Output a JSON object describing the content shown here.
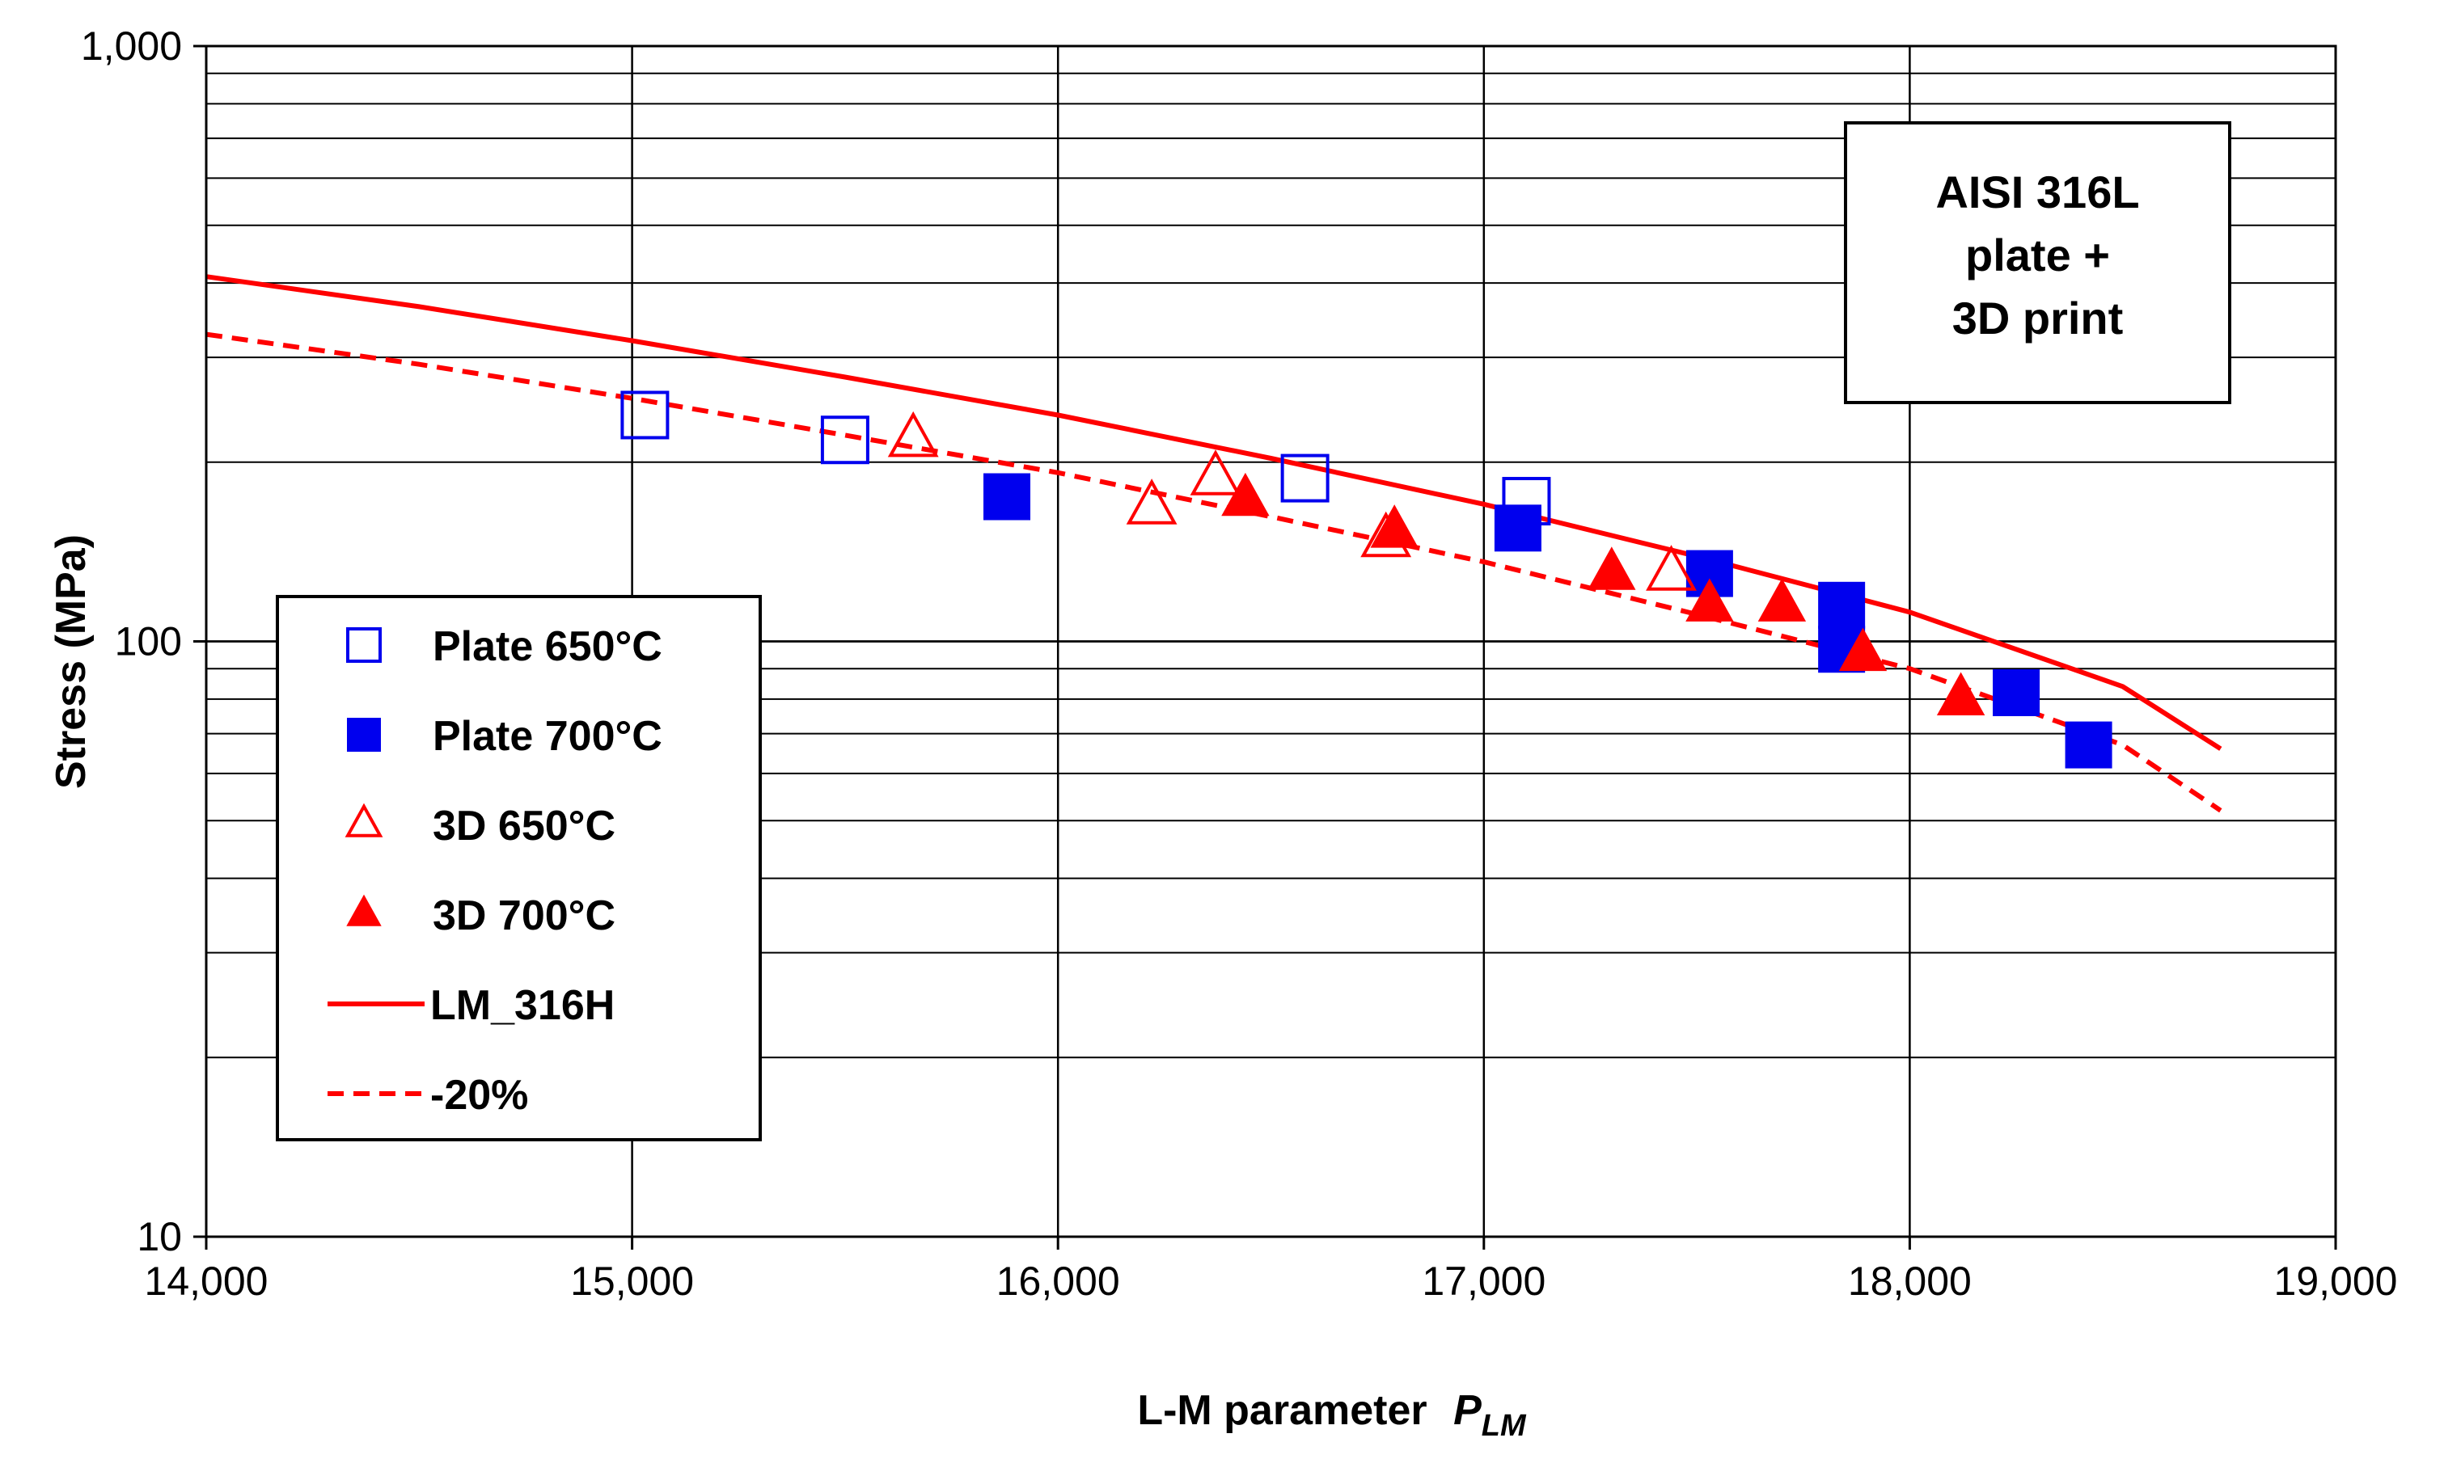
{
  "chart_data": {
    "type": "scatter",
    "title": "",
    "xlabel": "L-M parameter",
    "xlabel_symbol": "P",
    "xlabel_subscript": "LM",
    "ylabel": "Stress (MPa)",
    "xlim": [
      14000,
      19000
    ],
    "ylim": [
      10,
      1000
    ],
    "yscale": "log",
    "grid": true,
    "x_ticks": [
      14000,
      15000,
      16000,
      17000,
      18000,
      19000
    ],
    "x_tick_labels": [
      "14,000",
      "15,000",
      "16,000",
      "17,000",
      "18,000",
      "19,000"
    ],
    "y_ticks": [
      10,
      100,
      1000
    ],
    "y_tick_labels": [
      "10",
      "100",
      "1,000"
    ],
    "legend_position": "center-left",
    "annotation": {
      "lines": [
        "AISI 316L",
        "plate +",
        "3D print"
      ],
      "position": "top-right"
    },
    "series": [
      {
        "name": "Plate 650°C",
        "marker": "square-open",
        "color": "#0000ee",
        "x": [
          15030,
          15500,
          16580,
          17100
        ],
        "y": [
          240,
          218,
          188,
          172
        ]
      },
      {
        "name": "Plate 700°C",
        "marker": "square-filled",
        "color": "#0000ee",
        "x": [
          15880,
          17080,
          17530,
          17840,
          17840,
          18250,
          18420
        ],
        "y": [
          175,
          155,
          130,
          115,
          97,
          82,
          67
        ]
      },
      {
        "name": "3D 650°C",
        "marker": "triangle-open",
        "color": "#ff0000",
        "x": [
          15660,
          16220,
          16370,
          16770,
          17440
        ],
        "y": [
          218,
          168,
          188,
          148,
          130
        ]
      },
      {
        "name": "3D 700°C",
        "marker": "triangle-filled",
        "color": "#ff0000",
        "x": [
          16440,
          16790,
          17300,
          17530,
          17700,
          17890,
          18120
        ],
        "y": [
          173,
          153,
          130,
          115,
          115,
          95,
          80
        ]
      },
      {
        "name": "LM_316H",
        "type": "line",
        "style": "solid",
        "color": "#ff0000",
        "x": [
          14000,
          14500,
          15000,
          15500,
          16000,
          16500,
          17000,
          17500,
          18000,
          18500,
          18730
        ],
        "y": [
          410,
          365,
          320,
          278,
          240,
          203,
          170,
          139,
          112,
          84,
          66
        ]
      },
      {
        "name": "-20%",
        "type": "line",
        "style": "dashed",
        "color": "#ff0000",
        "x": [
          14000,
          14500,
          15000,
          15500,
          16000,
          16500,
          17000,
          17500,
          18000,
          18500,
          18730
        ],
        "y": [
          328,
          292,
          256,
          222,
          192,
          162,
          136,
          111,
          90,
          67,
          52
        ]
      }
    ]
  }
}
